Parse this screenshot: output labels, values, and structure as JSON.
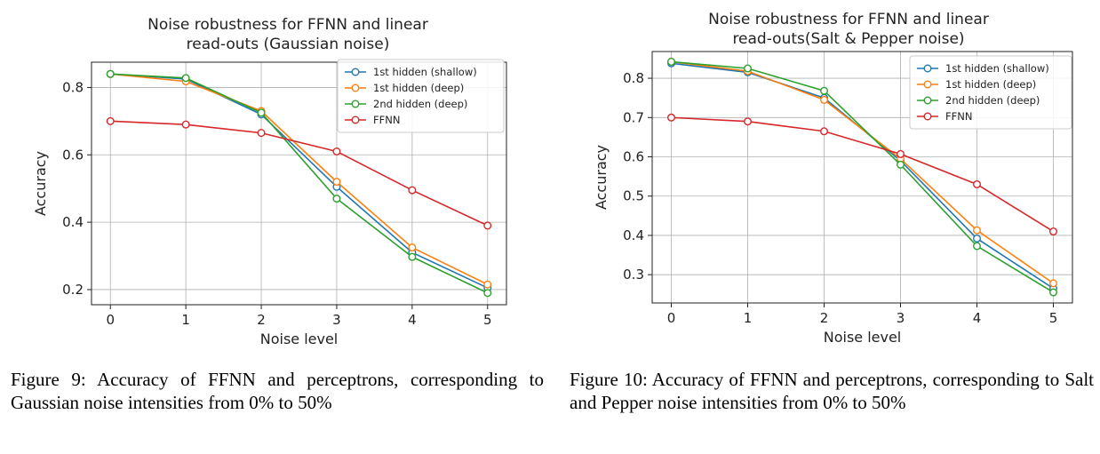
{
  "figures": [
    {
      "caption": "Figure 9: Accuracy of FFNN and perceptrons, corresponding to Gaussian noise intensities from 0% to 50%",
      "chart_data": {
        "type": "line",
        "title_lines": [
          "Noise robustness for FFNN and linear",
          "read-outs (Gaussian noise)"
        ],
        "xlabel": "Noise level",
        "ylabel": "Accuracy",
        "x": [
          0,
          1,
          2,
          3,
          4,
          5
        ],
        "xticks": [
          "0",
          "1",
          "2",
          "3",
          "4",
          "5"
        ],
        "yticks": [
          0.2,
          0.4,
          0.6,
          0.8
        ],
        "ytick_labels": [
          "0.2",
          "0.4",
          "0.6",
          "0.8"
        ],
        "xlim": [
          -0.25,
          5.25
        ],
        "ylim": [
          0.155,
          0.875
        ],
        "grid": true,
        "legend_position": "top-right",
        "series": [
          {
            "name": "1st hidden (shallow)",
            "color": "#1f77b4",
            "values": [
              0.84,
              0.825,
              0.72,
              0.505,
              0.31,
              0.205
            ]
          },
          {
            "name": "1st hidden (deep)",
            "color": "#ff7f0e",
            "values": [
              0.84,
              0.818,
              0.73,
              0.52,
              0.325,
              0.215
            ]
          },
          {
            "name": "2nd hidden (deep)",
            "color": "#2ca02c",
            "values": [
              0.84,
              0.828,
              0.725,
              0.47,
              0.297,
              0.19
            ]
          },
          {
            "name": "FFNN",
            "color": "#d62728",
            "values": [
              0.7,
              0.69,
              0.665,
              0.61,
              0.495,
              0.39
            ]
          }
        ]
      }
    },
    {
      "caption": "Figure 10: Accuracy of FFNN and perceptrons, corresponding to Salt and Pepper noise intensities from 0% to 50%",
      "chart_data": {
        "type": "line",
        "title_lines": [
          "Noise robustness for FFNN and linear",
          "read-outs(Salt & Pepper noise)"
        ],
        "xlabel": "Noise level",
        "ylabel": "Accuracy",
        "x": [
          0,
          1,
          2,
          3,
          4,
          5
        ],
        "xticks": [
          "0",
          "1",
          "2",
          "3",
          "4",
          "5"
        ],
        "yticks": [
          0.3,
          0.4,
          0.5,
          0.6,
          0.7,
          0.8
        ],
        "ytick_labels": [
          "0.3",
          "0.4",
          "0.5",
          "0.6",
          "0.7",
          "0.8"
        ],
        "xlim": [
          -0.25,
          5.25
        ],
        "ylim": [
          0.228,
          0.868
        ],
        "grid": true,
        "legend_position": "top-right",
        "series": [
          {
            "name": "1st hidden (shallow)",
            "color": "#1f77b4",
            "values": [
              0.838,
              0.815,
              0.75,
              0.59,
              0.392,
              0.265
            ]
          },
          {
            "name": "1st hidden (deep)",
            "color": "#ff7f0e",
            "values": [
              0.842,
              0.818,
              0.745,
              0.595,
              0.413,
              0.278
            ]
          },
          {
            "name": "2nd hidden (deep)",
            "color": "#2ca02c",
            "values": [
              0.842,
              0.825,
              0.768,
              0.58,
              0.373,
              0.255
            ]
          },
          {
            "name": "FFNN",
            "color": "#d62728",
            "values": [
              0.7,
              0.69,
              0.665,
              0.607,
              0.53,
              0.41
            ]
          }
        ]
      }
    }
  ]
}
